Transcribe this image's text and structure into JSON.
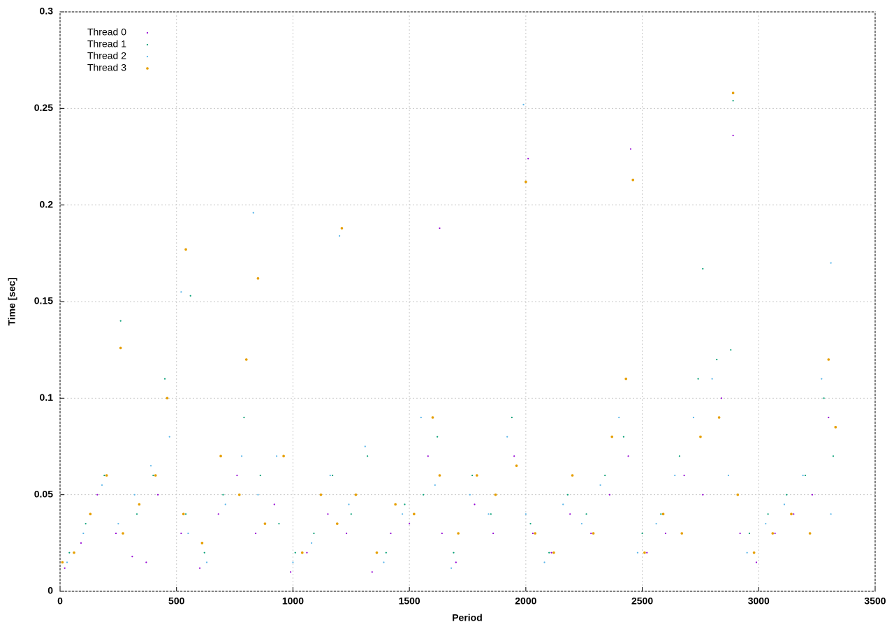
{
  "chart_data": {
    "type": "scatter",
    "x_label": "Period",
    "y_label": "Time [sec]",
    "xlim": [
      0,
      3500
    ],
    "ylim": [
      0,
      0.3
    ],
    "xticks": [
      0,
      500,
      1000,
      1500,
      2000,
      2500,
      3000,
      3500
    ],
    "yticks": [
      0,
      0.05,
      0.1,
      0.15,
      0.2,
      0.25,
      0.3
    ],
    "grid": true,
    "legend": "upper-left",
    "series": [
      {
        "name": "Thread 0",
        "color": "#9400d3",
        "x": [
          20,
          90,
          160,
          240,
          310,
          370,
          420,
          520,
          600,
          680,
          760,
          840,
          920,
          990,
          1060,
          1150,
          1230,
          1340,
          1420,
          1500,
          1580,
          1640,
          1700,
          1780,
          1860,
          1950,
          2030,
          2110,
          2190,
          2280,
          2360,
          2440,
          2520,
          2600,
          2680,
          2760,
          2840,
          2920,
          2990,
          3070,
          3150,
          3230,
          3300,
          1630,
          2010,
          2450,
          2890
        ],
        "y": [
          0.012,
          0.025,
          0.05,
          0.03,
          0.018,
          0.015,
          0.05,
          0.03,
          0.012,
          0.04,
          0.06,
          0.03,
          0.045,
          0.01,
          0.02,
          0.04,
          0.03,
          0.01,
          0.03,
          0.035,
          0.07,
          0.03,
          0.015,
          0.045,
          0.03,
          0.07,
          0.03,
          0.02,
          0.04,
          0.03,
          0.05,
          0.07,
          0.02,
          0.03,
          0.06,
          0.05,
          0.1,
          0.03,
          0.015,
          0.03,
          0.04,
          0.05,
          0.09,
          0.188,
          0.224,
          0.229,
          0.236
        ]
      },
      {
        "name": "Thread 1",
        "color": "#009e73",
        "x": [
          40,
          110,
          190,
          260,
          330,
          400,
          450,
          540,
          620,
          700,
          790,
          860,
          940,
          1010,
          1090,
          1170,
          1250,
          1320,
          1400,
          1480,
          1560,
          1620,
          1690,
          1770,
          1850,
          1940,
          2020,
          2100,
          2180,
          2260,
          2340,
          2420,
          2500,
          2580,
          2660,
          2740,
          2820,
          2880,
          2960,
          3040,
          3120,
          3200,
          3280,
          3320,
          560,
          2760,
          2890
        ],
        "y": [
          0.02,
          0.035,
          0.06,
          0.14,
          0.04,
          0.06,
          0.11,
          0.04,
          0.02,
          0.05,
          0.09,
          0.06,
          0.035,
          0.02,
          0.03,
          0.06,
          0.04,
          0.07,
          0.02,
          0.045,
          0.05,
          0.08,
          0.02,
          0.06,
          0.04,
          0.09,
          0.035,
          0.02,
          0.05,
          0.04,
          0.06,
          0.08,
          0.03,
          0.04,
          0.07,
          0.11,
          0.12,
          0.125,
          0.03,
          0.04,
          0.05,
          0.06,
          0.1,
          0.07,
          0.153,
          0.167,
          0.254
        ]
      },
      {
        "name": "Thread 2",
        "color": "#56b4e9",
        "x": [
          30,
          100,
          180,
          250,
          320,
          390,
          470,
          550,
          630,
          710,
          780,
          850,
          930,
          1000,
          1080,
          1160,
          1240,
          1310,
          1390,
          1470,
          1550,
          1610,
          1680,
          1760,
          1840,
          1920,
          2000,
          2080,
          2160,
          2240,
          2320,
          2400,
          2480,
          2560,
          2640,
          2720,
          2800,
          2870,
          2950,
          3030,
          3110,
          3190,
          3270,
          3310,
          520,
          830,
          1200,
          1990,
          3310
        ],
        "y": [
          0.015,
          0.03,
          0.055,
          0.035,
          0.05,
          0.065,
          0.08,
          0.03,
          0.015,
          0.045,
          0.07,
          0.05,
          0.07,
          0.015,
          0.025,
          0.06,
          0.045,
          0.075,
          0.015,
          0.04,
          0.09,
          0.055,
          0.012,
          0.05,
          0.04,
          0.08,
          0.04,
          0.015,
          0.045,
          0.035,
          0.055,
          0.09,
          0.02,
          0.035,
          0.06,
          0.09,
          0.11,
          0.06,
          0.02,
          0.035,
          0.045,
          0.06,
          0.11,
          0.04,
          0.155,
          0.196,
          0.184,
          0.252,
          0.17
        ]
      },
      {
        "name": "Thread 3",
        "color": "#e69f00",
        "x": [
          10,
          60,
          130,
          200,
          270,
          340,
          410,
          460,
          530,
          610,
          690,
          770,
          800,
          880,
          960,
          1040,
          1120,
          1190,
          1270,
          1360,
          1440,
          1520,
          1600,
          1630,
          1710,
          1790,
          1870,
          1960,
          2040,
          2120,
          2200,
          2290,
          2370,
          2430,
          2510,
          2590,
          2670,
          2750,
          2830,
          2910,
          2980,
          3060,
          3140,
          3220,
          3300,
          3330,
          260,
          540,
          850,
          1210,
          2000,
          2460,
          2890
        ],
        "y": [
          0.015,
          0.02,
          0.04,
          0.06,
          0.03,
          0.045,
          0.06,
          0.1,
          0.04,
          0.025,
          0.07,
          0.05,
          0.12,
          0.035,
          0.07,
          0.02,
          0.05,
          0.035,
          0.05,
          0.02,
          0.045,
          0.04,
          0.09,
          0.06,
          0.03,
          0.06,
          0.05,
          0.065,
          0.03,
          0.02,
          0.06,
          0.03,
          0.08,
          0.11,
          0.02,
          0.04,
          0.03,
          0.08,
          0.09,
          0.05,
          0.02,
          0.03,
          0.04,
          0.03,
          0.12,
          0.085,
          0.126,
          0.177,
          0.162,
          0.188,
          0.212,
          0.213,
          0.258
        ]
      }
    ]
  }
}
